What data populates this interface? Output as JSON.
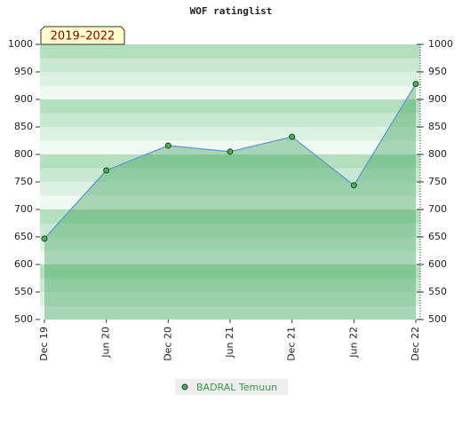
{
  "chart_data": {
    "type": "area",
    "title": "WOF ratinglist",
    "annotation": "2019–2022",
    "categories": [
      "Dec 19",
      "Jun 20",
      "Dec 20",
      "Jun 21",
      "Dec 21",
      "Jun 22",
      "Dec 22"
    ],
    "series": [
      {
        "name": "BADRAL Temuun",
        "color": "#5b9bd5",
        "values": [
          647,
          771,
          816,
          805,
          832,
          744,
          928
        ]
      }
    ],
    "ylim": [
      500,
      1000
    ],
    "yticks": [
      500,
      550,
      600,
      650,
      700,
      750,
      800,
      850,
      900,
      950,
      1000
    ],
    "y2lim": [
      500,
      1000
    ],
    "y2ticks": [
      500,
      550,
      600,
      650,
      700,
      750,
      800,
      850,
      900,
      950,
      1000
    ],
    "legend": "bottom"
  }
}
